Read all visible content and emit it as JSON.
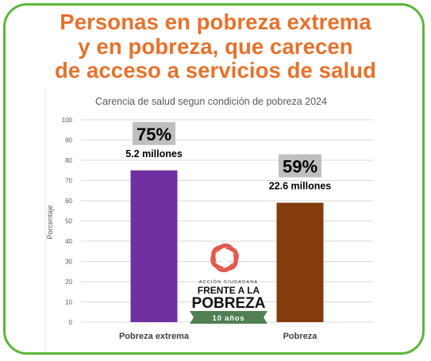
{
  "headline": {
    "lines": [
      "Personas en pobreza extrema",
      "y en pobreza, que carecen",
      "de acceso a servicios de salud"
    ]
  },
  "colors": {
    "frame": "#5bb63a",
    "headline": "#e5722d",
    "gridline": "#d9d9d9",
    "label_box": "#bfbfbf"
  },
  "logo": {
    "tagline": "ACCIÓN CIUDADANA",
    "line1": "FRENTE A LA",
    "line2": "POBREZA",
    "ribbon": "10 años",
    "colors": {
      "mark": "#e0584c",
      "ribbon": "#4f7f52"
    }
  },
  "chart_data": {
    "type": "bar",
    "title": "Carencia de salud segun condición de pobreza 2024",
    "ylabel": "Porcentaje",
    "xlabel": "",
    "ylim": [
      0,
      100
    ],
    "yticks": [
      0,
      10,
      20,
      30,
      40,
      50,
      60,
      70,
      80,
      90,
      100
    ],
    "grid": true,
    "categories": [
      "Pobreza extrema",
      "Pobreza"
    ],
    "values": [
      75,
      59
    ],
    "bar_colors": [
      "#7030a0",
      "#843c0c"
    ],
    "pct_labels": [
      "75%",
      "59%"
    ],
    "count_labels": [
      "5.2 millones",
      "22.6 millones"
    ]
  }
}
